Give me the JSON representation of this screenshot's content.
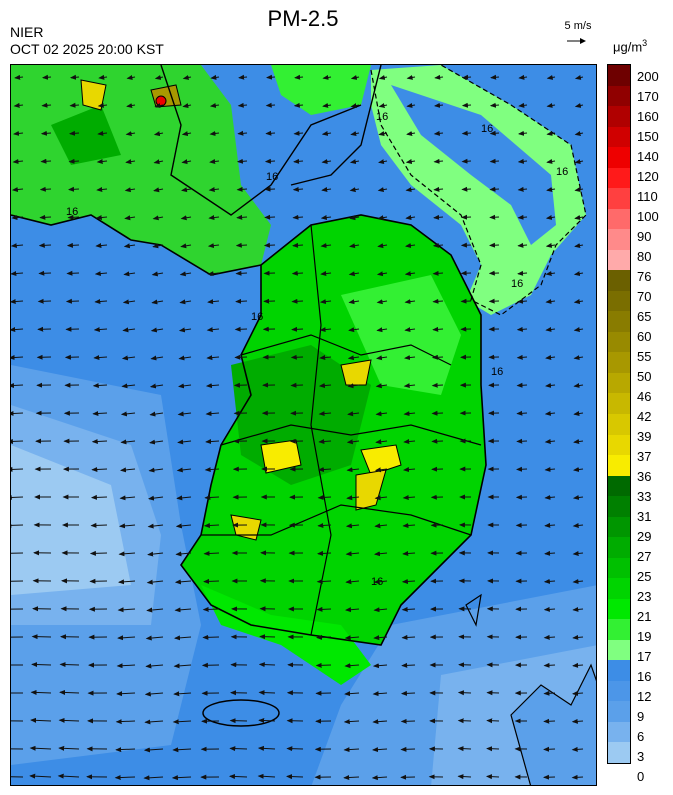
{
  "title": "PM-2.5",
  "org": "NIER",
  "timestamp": "OCT 02 2025 20:00 KST",
  "wind_reference": {
    "label": "5 m/s",
    "icon": "arrow-right-icon"
  },
  "unit": {
    "base": "μg/m",
    "exp": "3"
  },
  "contour_label": "16",
  "colorbar": {
    "labels": [
      "200",
      "170",
      "160",
      "150",
      "140",
      "120",
      "110",
      "100",
      "90",
      "80",
      "76",
      "70",
      "65",
      "60",
      "55",
      "50",
      "46",
      "42",
      "39",
      "37",
      "36",
      "33",
      "31",
      "29",
      "27",
      "25",
      "23",
      "21",
      "19",
      "17",
      "16",
      "12",
      "9",
      "6",
      "3",
      "0"
    ],
    "colors": [
      "#6e0000",
      "#900000",
      "#b00000",
      "#d00000",
      "#ee0000",
      "#ff1a1a",
      "#ff4040",
      "#ff6a6a",
      "#ff8a8a",
      "#ffaaaa",
      "#6b6000",
      "#7a6e00",
      "#897c00",
      "#988a00",
      "#a89800",
      "#b8a800",
      "#c8b800",
      "#d8c800",
      "#e8d800",
      "#f8ec00",
      "#006a00",
      "#008000",
      "#009600",
      "#00ac00",
      "#00c000",
      "#00d400",
      "#00e800",
      "#33f033",
      "#80ff80",
      "#3d8de6",
      "#4c96e8",
      "#5ba0ea",
      "#78b2ee",
      "#9ccaf2"
    ]
  }
}
